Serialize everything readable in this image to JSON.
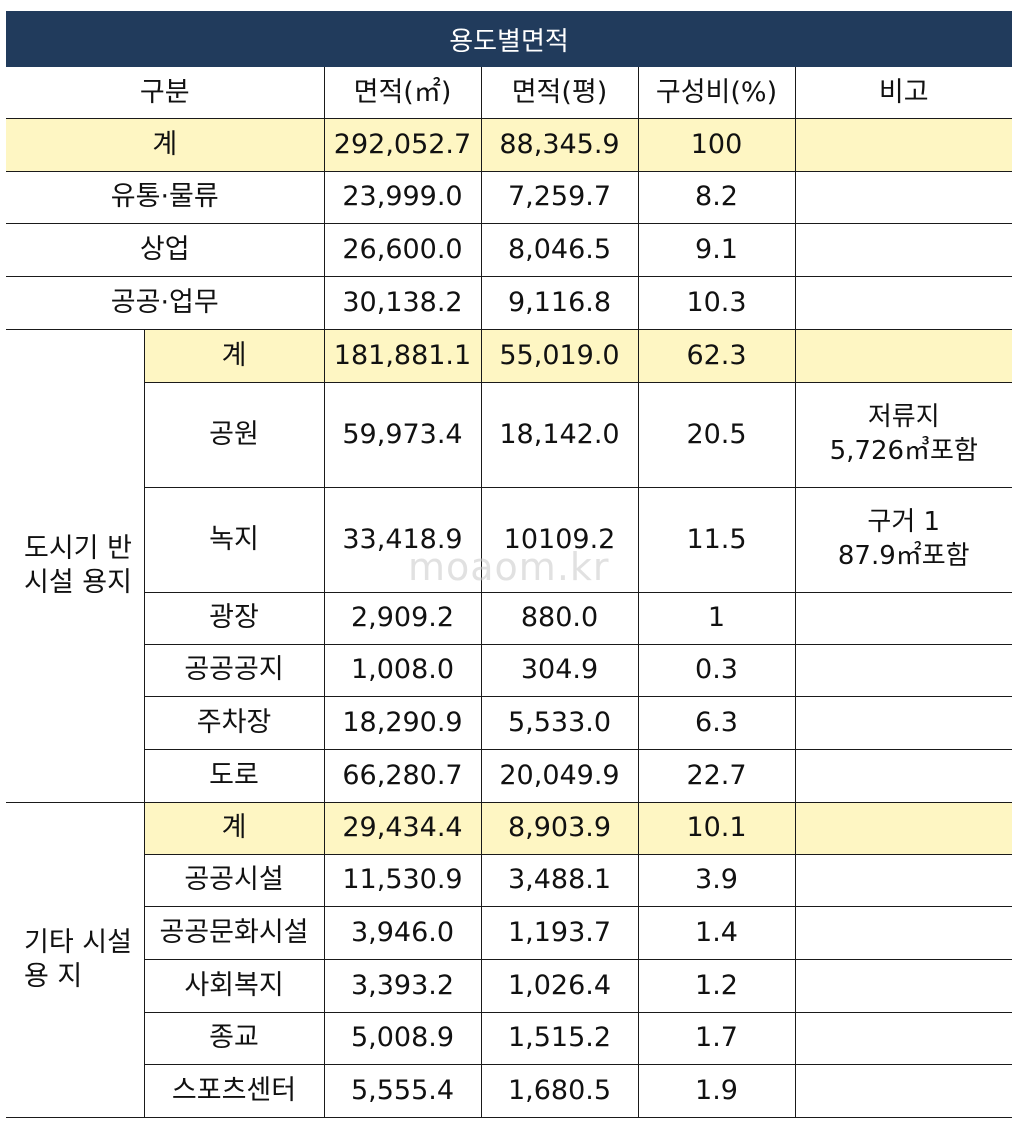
{
  "title": "용도별면적",
  "header": {
    "category": "구분",
    "area_m2": "면적(㎡)",
    "area_pyeong": "면적(평)",
    "ratio": "구성비(%)",
    "note": "비고"
  },
  "overall_total": {
    "label": "계",
    "area_m2": "292,052.7",
    "area_pyeong": "88,345.9",
    "ratio": "100",
    "note": ""
  },
  "top_rows": [
    {
      "label": "유통·물류",
      "area_m2": "23,999.0",
      "area_pyeong": "7,259.7",
      "ratio": "8.2",
      "note": ""
    },
    {
      "label": "상업",
      "area_m2": "26,600.0",
      "area_pyeong": "8,046.5",
      "ratio": "9.1",
      "note": ""
    },
    {
      "label": "공공·업무",
      "area_m2": "30,138.2",
      "area_pyeong": "9,116.8",
      "ratio": "10.3",
      "note": ""
    }
  ],
  "infra_group": {
    "label": "도시기 반 시설 용지",
    "total": {
      "label": "계",
      "area_m2": "181,881.1",
      "area_pyeong": "55,019.0",
      "ratio": "62.3",
      "note": ""
    },
    "rows": [
      {
        "label": "공원",
        "area_m2": "59,973.4",
        "area_pyeong": "18,142.0",
        "ratio": "20.5",
        "note_line1": "저류지",
        "note_line2": "5,726㎥포함"
      },
      {
        "label": "녹지",
        "area_m2": "33,418.9",
        "area_pyeong": "10109.2",
        "ratio": "11.5",
        "note_line1": "구거 1",
        "note_line2": "87.9㎡포함"
      },
      {
        "label": "광장",
        "area_m2": "2,909.2",
        "area_pyeong": "880.0",
        "ratio": "1",
        "note_line1": "",
        "note_line2": ""
      },
      {
        "label": "공공공지",
        "area_m2": "1,008.0",
        "area_pyeong": "304.9",
        "ratio": "0.3",
        "note_line1": "",
        "note_line2": ""
      },
      {
        "label": "주차장",
        "area_m2": "18,290.9",
        "area_pyeong": "5,533.0",
        "ratio": "6.3",
        "note_line1": "",
        "note_line2": ""
      },
      {
        "label": "도로",
        "area_m2": "66,280.7",
        "area_pyeong": "20,049.9",
        "ratio": "22.7",
        "note_line1": "",
        "note_line2": ""
      }
    ]
  },
  "other_group": {
    "label": "기타 시설용 지",
    "total": {
      "label": "계",
      "area_m2": "29,434.4",
      "area_pyeong": "8,903.9",
      "ratio": "10.1",
      "note": ""
    },
    "rows": [
      {
        "label": "공공시설",
        "area_m2": "11,530.9",
        "area_pyeong": "3,488.1",
        "ratio": "3.9"
      },
      {
        "label": "공공문화시설",
        "area_m2": "3,946.0",
        "area_pyeong": "1,193.7",
        "ratio": "1.4"
      },
      {
        "label": "사회복지",
        "area_m2": "3,393.2",
        "area_pyeong": "1,026.4",
        "ratio": "1.2"
      },
      {
        "label": "종교",
        "area_m2": "5,008.9",
        "area_pyeong": "1,515.2",
        "ratio": "1.7"
      },
      {
        "label": "스포츠센터",
        "area_m2": "5,555.4",
        "area_pyeong": "1,680.5",
        "ratio": "1.9"
      }
    ]
  },
  "watermark": "moaom.kr",
  "colors": {
    "title_bg": "#213b5c",
    "highlight": "#fef6c3"
  }
}
